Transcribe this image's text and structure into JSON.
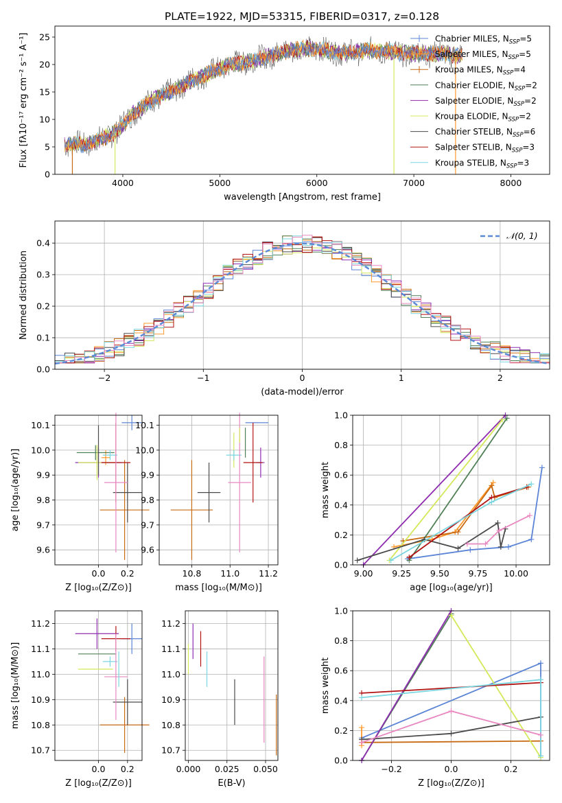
{
  "colors": {
    "Chabrier MILES": "#5b84d6",
    "Salpeter MILES": "#ff9a2e",
    "Kroupa MILES": "#c86a12",
    "Chabrier ELODIE": "#4f7f55",
    "Salpeter ELODIE": "#8e2cb0",
    "Kroupa ELODIE": "#d4e85a",
    "Chabrier STELIB": "#4a4a4a",
    "Salpeter STELIB": "#b31212",
    "Kroupa STELIB": "#7ad6e0",
    "pink": "#e887c0",
    "gauss": "#5b8bd6"
  },
  "chart_data": [
    {
      "id": "spectrum",
      "type": "line",
      "title": "PLATE=1922, MJD=53315, FIBERID=0317, z=0.128",
      "xlabel": "wavelength [Angstrom, rest frame]",
      "ylabel": "Flux [fλ10⁻¹⁷ erg cm⁻² s⁻¹ A⁻¹]",
      "xlim": [
        3300,
        8400
      ],
      "ylim": [
        0,
        27
      ],
      "xticks": [
        4000,
        5000,
        6000,
        7000,
        8000
      ],
      "yticks": [
        0,
        5,
        10,
        15,
        20,
        25
      ],
      "legend_position": "top-right",
      "legend": [
        {
          "label": "Chabrier MILES, N_SSP=5",
          "key": "Chabrier MILES",
          "marker": "+"
        },
        {
          "label": "Salpeter MILES, N_SSP=5",
          "key": "Salpeter MILES",
          "marker": "+"
        },
        {
          "label": "Kroupa MILES, N_SSP=4",
          "key": "Kroupa MILES",
          "marker": "+"
        },
        {
          "label": "Chabrier ELODIE, N_SSP=2",
          "key": "Chabrier ELODIE"
        },
        {
          "label": "Salpeter ELODIE, N_SSP=2",
          "key": "Salpeter ELODIE"
        },
        {
          "label": "Kroupa ELODIE, N_SSP=2",
          "key": "Kroupa ELODIE"
        },
        {
          "label": "Chabrier STELIB, N_SSP=6",
          "key": "Chabrier STELIB"
        },
        {
          "label": "Salpeter STELIB, N_SSP=3",
          "key": "Salpeter STELIB"
        },
        {
          "label": "Kroupa STELIB, N_SSP=3",
          "key": "Kroupa STELIB"
        }
      ],
      "continuum": [
        [
          3400,
          5.6
        ],
        [
          3600,
          5.4
        ],
        [
          3800,
          6.5
        ],
        [
          3950,
          8
        ],
        [
          4100,
          11
        ],
        [
          4300,
          13.5
        ],
        [
          4500,
          15
        ],
        [
          4700,
          17
        ],
        [
          4900,
          18.5
        ],
        [
          5100,
          20
        ],
        [
          5300,
          20.5
        ],
        [
          5500,
          21.5
        ],
        [
          5700,
          22.5
        ],
        [
          5900,
          23
        ],
        [
          6100,
          22.5
        ],
        [
          6300,
          22
        ],
        [
          6500,
          22.5
        ],
        [
          6700,
          22.5
        ],
        [
          6900,
          22
        ],
        [
          7100,
          22
        ],
        [
          7300,
          22
        ],
        [
          7500,
          21.5
        ]
      ],
      "spikes": [
        {
          "x": 3480,
          "bottom": 0,
          "key": "Kroupa MILES"
        },
        {
          "x": 3920,
          "bottom": 0,
          "key": "Kroupa ELODIE"
        },
        {
          "x": 6795,
          "bottom": 0,
          "key": "Kroupa ELODIE"
        },
        {
          "x": 7430,
          "bottom": 0,
          "key": "Salpeter MILES"
        }
      ]
    },
    {
      "id": "residuals",
      "type": "line",
      "xlabel": "(data-model)/error",
      "ylabel": "Normed distribution",
      "xlim": [
        -2.5,
        2.5
      ],
      "ylim": [
        0,
        0.47
      ],
      "xticks": [
        -2,
        -1,
        0,
        1,
        2
      ],
      "yticks": [
        0.0,
        0.1,
        0.2,
        0.3,
        0.4
      ],
      "legend_position": "top-right",
      "legend": [
        {
          "label": "𝒩(0, 1)",
          "key": "gauss"
        }
      ],
      "grid": true
    },
    {
      "id": "z-age",
      "type": "scatter",
      "xlabel": "Z [log₁₀(Z/Z⊙)]",
      "ylabel": "age  [log₁₀(age/yr)]",
      "xlim": [
        -0.3,
        0.3
      ],
      "ylim": [
        9.54,
        10.14
      ],
      "xticks": [
        0.0,
        0.2
      ],
      "yticks": [
        9.6,
        9.7,
        9.8,
        9.9,
        10.0,
        10.1
      ],
      "points": [
        {
          "key": "Chabrier MILES",
          "x": 0.23,
          "xerr": 0.07,
          "y": 10.11,
          "yerr": 0.03
        },
        {
          "key": "Salpeter MILES",
          "x": 0.05,
          "xerr": 0.03,
          "y": 9.97,
          "yerr": 0.03
        },
        {
          "key": "Kroupa MILES",
          "x": 0.18,
          "xerr": 0.17,
          "y": 9.76,
          "yerr": 0.2
        },
        {
          "key": "Chabrier ELODIE",
          "x": -0.02,
          "xerr": 0.13,
          "y": 9.99,
          "yerr": 0.03
        },
        {
          "key": "Salpeter ELODIE",
          "x": 0.0,
          "xerr": 0.16,
          "y": 9.95,
          "yerr": 0.06
        },
        {
          "key": "Kroupa ELODIE",
          "x": -0.01,
          "xerr": 0.13,
          "y": 9.95,
          "yerr": 0.07
        },
        {
          "key": "Chabrier STELIB",
          "x": 0.2,
          "xerr": 0.1,
          "y": 9.83,
          "yerr": 0.12
        },
        {
          "key": "Salpeter STELIB",
          "x": 0.12,
          "xerr": 0.1,
          "y": 9.95,
          "yerr": 0.16
        },
        {
          "key": "Kroupa STELIB",
          "x": 0.08,
          "xerr": 0.05,
          "y": 9.98,
          "yerr": 0.02
        },
        {
          "key": "pink",
          "x": 0.12,
          "xerr": 0.08,
          "y": 9.87,
          "yerr": 0.28
        },
        {
          "key": "Chabrier STELIB",
          "x": 0.0,
          "xerr": 0.0,
          "y": 10.0,
          "yerr": 0.1
        }
      ]
    },
    {
      "id": "mass-age",
      "type": "scatter",
      "xlabel": "mass [log₁₀(M/M⊙)]",
      "ylabel": "",
      "xlim": [
        10.63,
        11.25
      ],
      "ylim": [
        9.54,
        10.14
      ],
      "xticks": [
        10.8,
        11.0,
        11.2
      ],
      "yticks": [
        9.6,
        9.7,
        9.8,
        9.9,
        10.0,
        10.1
      ],
      "points": [
        {
          "key": "Chabrier MILES",
          "x": 11.14,
          "xerr": 0.06,
          "y": 10.11,
          "yerr": 0.0
        },
        {
          "key": "Kroupa MILES",
          "x": 10.8,
          "xerr": 0.11,
          "y": 9.76,
          "yerr": 0.2
        },
        {
          "key": "Chabrier ELODIE",
          "x": 11.08,
          "xerr": 0.0,
          "y": 10.03,
          "yerr": 0.06
        },
        {
          "key": "Salpeter ELODIE",
          "x": 11.16,
          "xerr": 0.02,
          "y": 9.95,
          "yerr": 0.06
        },
        {
          "key": "Kroupa ELODIE",
          "x": 11.02,
          "xerr": 0.0,
          "y": 10.0,
          "yerr": 0.07
        },
        {
          "key": "Chabrier STELIB",
          "x": 10.89,
          "xerr": 0.06,
          "y": 9.83,
          "yerr": 0.12
        },
        {
          "key": "Salpeter STELIB",
          "x": 11.12,
          "xerr": 0.05,
          "y": 9.95,
          "yerr": 0.16
        },
        {
          "key": "Kroupa STELIB",
          "x": 11.02,
          "xerr": 0.04,
          "y": 9.98,
          "yerr": 0.02
        },
        {
          "key": "pink",
          "x": 11.05,
          "xerr": 0.06,
          "y": 9.87,
          "yerr": 0.28
        },
        {
          "key": "Kroupa ELODIE",
          "x": 11.05,
          "xerr": 0.0,
          "y": 10.06,
          "yerr": 0.03
        }
      ]
    },
    {
      "id": "age-weight",
      "type": "line",
      "xlabel": "age  [log₁₀(age/yr)]",
      "ylabel": "mass weight",
      "xlim": [
        8.93,
        10.22
      ],
      "ylim": [
        0,
        1
      ],
      "xticks": [
        9.0,
        9.25,
        9.5,
        9.75,
        10.0
      ],
      "yticks": [
        0.0,
        0.2,
        0.4,
        0.6,
        0.8,
        1.0
      ],
      "grid": true,
      "series": [
        {
          "key": "Chabrier MILES",
          "points": [
            [
              9.29,
              0.04
            ],
            [
              9.7,
              0.1
            ],
            [
              9.95,
              0.12
            ],
            [
              10.1,
              0.17
            ],
            [
              10.17,
              0.65
            ]
          ]
        },
        {
          "key": "Salpeter MILES",
          "points": [
            [
              9.2,
              0.12
            ],
            [
              9.45,
              0.17
            ],
            [
              9.6,
              0.22
            ],
            [
              9.85,
              0.55
            ],
            [
              9.6,
              0.22
            ]
          ]
        },
        {
          "key": "Kroupa MILES",
          "points": [
            [
              9.26,
              0.16
            ],
            [
              9.62,
              0.22
            ],
            [
              9.84,
              0.53
            ],
            [
              9.86,
              0.45
            ],
            [
              10.08,
              0.52
            ]
          ]
        },
        {
          "key": "Chabrier ELODIE",
          "points": [
            [
              9.3,
              0.03
            ],
            [
              9.94,
              0.98
            ]
          ]
        },
        {
          "key": "Salpeter ELODIE",
          "points": [
            [
              9.0,
              0.0
            ],
            [
              9.93,
              1.0
            ]
          ]
        },
        {
          "key": "Kroupa ELODIE",
          "points": [
            [
              9.17,
              0.03
            ],
            [
              9.91,
              0.97
            ]
          ]
        },
        {
          "key": "Chabrier STELIB",
          "points": [
            [
              8.96,
              0.03
            ],
            [
              9.4,
              0.17
            ],
            [
              9.62,
              0.11
            ],
            [
              9.88,
              0.28
            ],
            [
              9.9,
              0.12
            ],
            [
              9.93,
              0.24
            ]
          ]
        },
        {
          "key": "Salpeter STELIB",
          "points": [
            [
              9.3,
              0.05
            ],
            [
              9.84,
              0.45
            ],
            [
              10.07,
              0.52
            ]
          ]
        },
        {
          "key": "Kroupa STELIB",
          "points": [
            [
              9.18,
              0.03
            ],
            [
              9.84,
              0.42
            ],
            [
              10.1,
              0.54
            ]
          ]
        },
        {
          "key": "pink",
          "points": [
            [
              9.68,
              0.14
            ],
            [
              9.8,
              0.14
            ],
            [
              9.89,
              0.23
            ],
            [
              10.09,
              0.33
            ]
          ]
        }
      ]
    },
    {
      "id": "z-mass",
      "type": "scatter",
      "xlabel": "Z [log₁₀(Z/Z⊙)]",
      "ylabel": "mass [log₁₀(M/M⊙)]",
      "xlim": [
        -0.3,
        0.3
      ],
      "ylim": [
        10.66,
        11.25
      ],
      "xticks": [
        0.0,
        0.2
      ],
      "yticks": [
        10.7,
        10.8,
        10.9,
        11.0,
        11.1,
        11.2
      ],
      "points": [
        {
          "key": "Chabrier MILES",
          "x": 0.23,
          "xerr": 0.07,
          "y": 11.14,
          "yerr": 0.06
        },
        {
          "key": "Kroupa MILES",
          "x": 0.18,
          "xerr": 0.17,
          "y": 10.8,
          "yerr": 0.11
        },
        {
          "key": "Chabrier ELODIE",
          "x": -0.01,
          "xerr": 0.13,
          "y": 11.08,
          "yerr": 0.0
        },
        {
          "key": "Salpeter ELODIE",
          "x": -0.01,
          "xerr": 0.15,
          "y": 11.16,
          "yerr": 0.06
        },
        {
          "key": "Kroupa ELODIE",
          "x": -0.02,
          "xerr": 0.12,
          "y": 11.02,
          "yerr": 0.0
        },
        {
          "key": "Chabrier STELIB",
          "x": 0.2,
          "xerr": 0.1,
          "y": 10.89,
          "yerr": 0.09
        },
        {
          "key": "Salpeter STELIB",
          "x": 0.12,
          "xerr": 0.1,
          "y": 11.14,
          "yerr": 0.05
        },
        {
          "key": "Kroupa STELIB",
          "x": 0.08,
          "xerr": 0.05,
          "y": 11.05,
          "yerr": 0.02
        },
        {
          "key": "pink",
          "x": 0.12,
          "xerr": 0.08,
          "y": 10.99,
          "yerr": 0.17
        },
        {
          "key": "Kroupa STELIB",
          "x": 0.14,
          "xerr": 0.0,
          "y": 11.02,
          "yerr": 0.07
        }
      ]
    },
    {
      "id": "ebv-mass",
      "type": "scatter",
      "xlabel": "E(B-V)",
      "ylabel": "",
      "xlim": [
        -0.002,
        0.058
      ],
      "ylim": [
        10.66,
        11.25
      ],
      "xticks": [
        0.0,
        0.025,
        0.05
      ],
      "xticklabels": [
        "0.000",
        "0.025",
        "0.050"
      ],
      "yticks": [
        10.7,
        10.8,
        10.9,
        11.0,
        11.1,
        11.2
      ],
      "points": [
        {
          "key": "Salpeter ELODIE",
          "x": 0.003,
          "xerr": 0.0,
          "y": 11.13,
          "yerr": 0.07
        },
        {
          "key": "Kroupa ELODIE",
          "x": 0.0,
          "xerr": 0.0,
          "y": 11.06,
          "yerr": 0.06
        },
        {
          "key": "Salpeter STELIB",
          "x": 0.008,
          "xerr": 0.0,
          "y": 11.1,
          "yerr": 0.07
        },
        {
          "key": "Kroupa STELIB",
          "x": 0.012,
          "xerr": 0.0,
          "y": 11.02,
          "yerr": 0.07
        },
        {
          "key": "Chabrier STELIB",
          "x": 0.03,
          "xerr": 0.0,
          "y": 10.89,
          "yerr": 0.09
        },
        {
          "key": "pink",
          "x": 0.049,
          "xerr": 0.0,
          "y": 10.9,
          "yerr": 0.17
        },
        {
          "key": "Kroupa MILES",
          "x": 0.057,
          "xerr": 0.0,
          "y": 10.8,
          "yerr": 0.12
        }
      ]
    },
    {
      "id": "z-weight",
      "type": "line",
      "xlabel": "Z [log₁₀(Z/Z⊙)]",
      "ylabel": "mass weight",
      "xlim": [
        -0.33,
        0.33
      ],
      "ylim": [
        0,
        1
      ],
      "xticks": [
        -0.2,
        0.0,
        0.2
      ],
      "yticks": [
        0.0,
        0.2,
        0.4,
        0.6,
        0.8,
        1.0
      ],
      "grid": true,
      "series": [
        {
          "key": "Chabrier MILES",
          "points": [
            [
              -0.3,
              0.15
            ],
            [
              0.3,
              0.65
            ],
            [
              0.3,
              0.03
            ]
          ]
        },
        {
          "key": "Kroupa MILES",
          "points": [
            [
              -0.3,
              0.12
            ],
            [
              0.3,
              0.13
            ]
          ]
        },
        {
          "key": "Salpeter MILES",
          "points": [
            [
              -0.3,
              0.22
            ],
            [
              -0.3,
              0.1
            ]
          ]
        },
        {
          "key": "Chabrier ELODIE",
          "points": [
            [
              -0.3,
              0.0
            ],
            [
              0.0,
              0.98
            ]
          ]
        },
        {
          "key": "Salpeter ELODIE",
          "points": [
            [
              -0.3,
              0.0
            ],
            [
              0.0,
              1.0
            ]
          ]
        },
        {
          "key": "Kroupa ELODIE",
          "points": [
            [
              0.0,
              0.97
            ],
            [
              0.3,
              0.02
            ]
          ]
        },
        {
          "key": "Chabrier STELIB",
          "points": [
            [
              -0.3,
              0.14
            ],
            [
              0.0,
              0.18
            ],
            [
              0.3,
              0.29
            ]
          ]
        },
        {
          "key": "Salpeter STELIB",
          "points": [
            [
              -0.3,
              0.45
            ],
            [
              0.3,
              0.52
            ]
          ]
        },
        {
          "key": "Kroupa STELIB",
          "points": [
            [
              -0.3,
              0.42
            ],
            [
              0.3,
              0.54
            ],
            [
              0.3,
              0.03
            ]
          ]
        },
        {
          "key": "pink",
          "points": [
            [
              -0.3,
              0.12
            ],
            [
              0.0,
              0.33
            ],
            [
              0.3,
              0.17
            ]
          ]
        }
      ]
    }
  ]
}
